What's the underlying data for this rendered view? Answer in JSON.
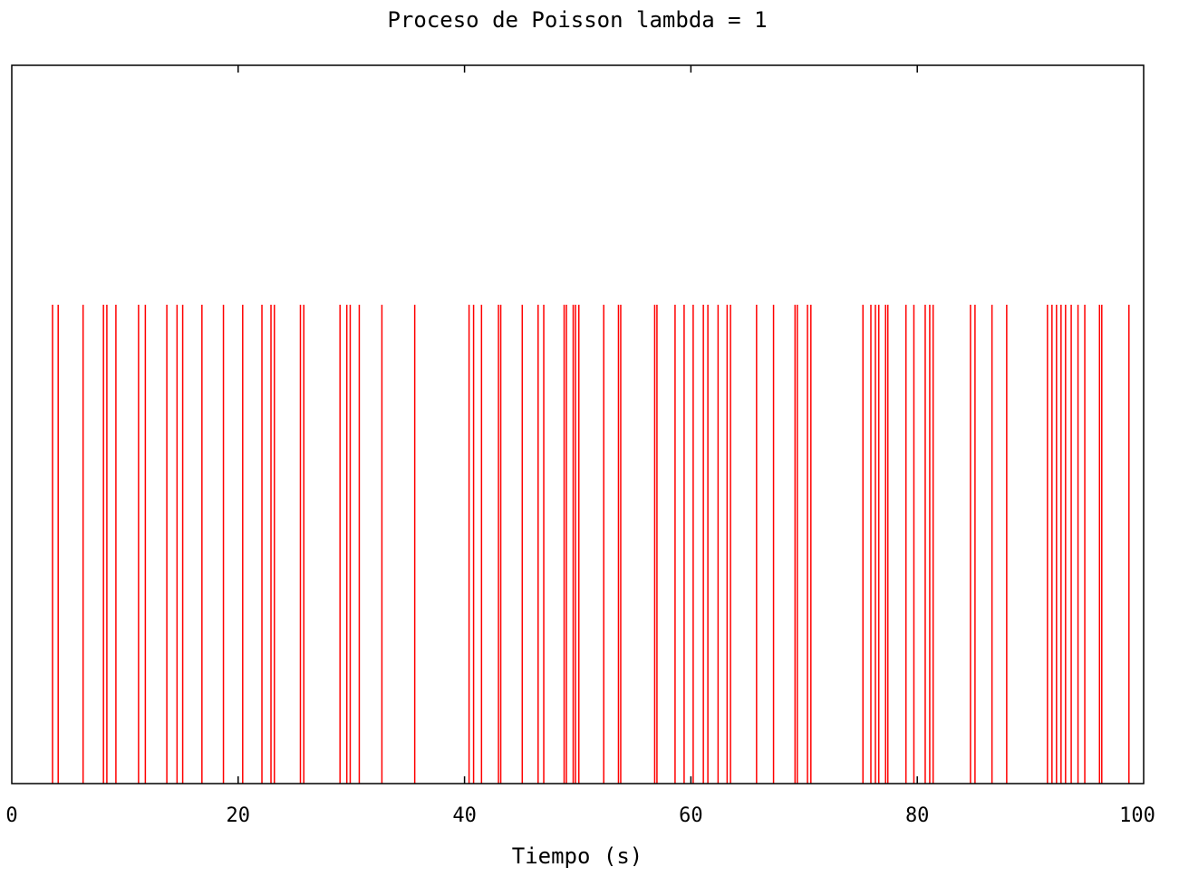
{
  "chart_data": {
    "type": "bar",
    "title": "Proceso de Poisson lambda = 1",
    "xlabel": "Tiempo (s)",
    "ylabel": "",
    "xlim": [
      0,
      100
    ],
    "ylim": [
      0,
      1.5
    ],
    "event_height": 1,
    "x_ticks": [
      "0",
      "20",
      "40",
      "60",
      "80",
      "100"
    ],
    "grid": false,
    "series_color": "#ff0000",
    "events": [
      3.6,
      4.1,
      6.3,
      8.1,
      8.4,
      9.2,
      11.2,
      11.8,
      13.7,
      14.6,
      15.1,
      16.8,
      18.7,
      20.4,
      22.1,
      22.9,
      23.2,
      25.5,
      25.8,
      29.0,
      29.6,
      29.9,
      30.7,
      32.7,
      35.6,
      40.4,
      40.8,
      41.5,
      43.0,
      43.2,
      45.1,
      46.5,
      47.0,
      48.8,
      49.0,
      49.6,
      49.8,
      50.1,
      52.3,
      53.6,
      53.8,
      56.8,
      57.0,
      58.6,
      59.4,
      60.2,
      61.1,
      61.5,
      62.4,
      63.2,
      63.5,
      65.8,
      67.3,
      69.2,
      69.4,
      70.3,
      70.6,
      75.2,
      75.9,
      76.3,
      76.6,
      77.2,
      77.4,
      79.0,
      79.7,
      80.7,
      81.1,
      81.4,
      84.7,
      85.1,
      86.6,
      87.9,
      91.5,
      91.9,
      92.3,
      92.7,
      93.1,
      93.6,
      94.2,
      94.8,
      96.1,
      96.3,
      98.7
    ]
  }
}
